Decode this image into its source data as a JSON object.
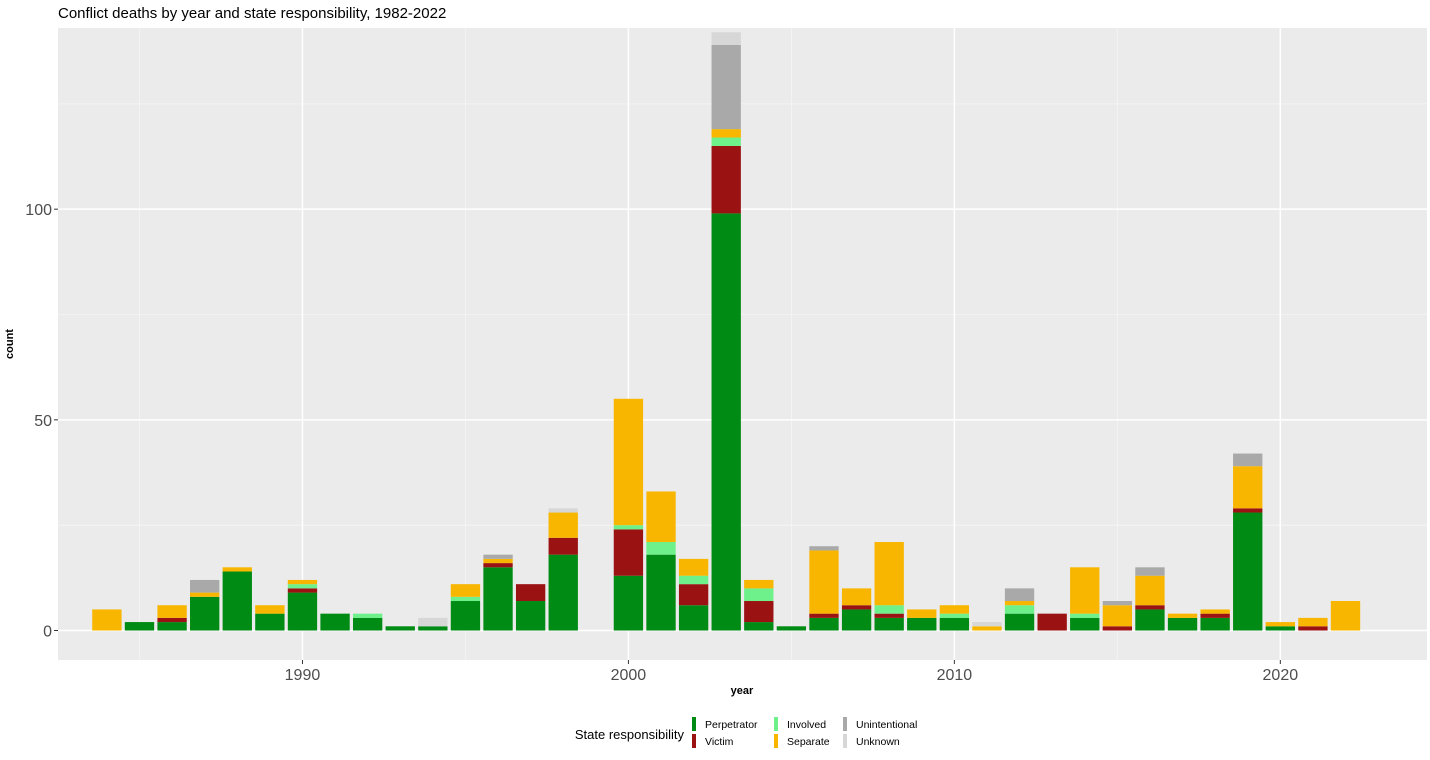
{
  "chart_data": {
    "type": "bar",
    "stacked": true,
    "title": "Conflict deaths by year and state responsibility, 1982-2022",
    "xlabel": "year",
    "ylabel": "count",
    "xlim": [
      1982.5,
      2024.5
    ],
    "ylim": [
      -7,
      143
    ],
    "x_ticks": [
      1990,
      2000,
      2010,
      2020
    ],
    "y_ticks": [
      0,
      50,
      100
    ],
    "grid": true,
    "legend_title": "State responsibility",
    "legend_position": "bottom",
    "years": [
      1984,
      1985,
      1986,
      1987,
      1988,
      1989,
      1990,
      1991,
      1992,
      1993,
      1994,
      1995,
      1996,
      1997,
      1998,
      2000,
      2001,
      2002,
      2003,
      2004,
      2005,
      2006,
      2007,
      2008,
      2009,
      2010,
      2011,
      2012,
      2013,
      2014,
      2015,
      2016,
      2017,
      2018,
      2019,
      2020,
      2021,
      2022
    ],
    "series": [
      {
        "name": "Perpetrator",
        "color": "#008b14",
        "values": [
          0,
          2,
          2,
          8,
          14,
          4,
          9,
          4,
          3,
          1,
          1,
          7,
          15,
          7,
          18,
          13,
          18,
          6,
          99,
          2,
          1,
          3,
          5,
          3,
          3,
          3,
          0,
          4,
          0,
          3,
          0,
          5,
          3,
          3,
          28,
          1,
          0,
          0
        ]
      },
      {
        "name": "Victim",
        "color": "#9b1213",
        "values": [
          0,
          0,
          1,
          0,
          0,
          0,
          1,
          0,
          0,
          0,
          0,
          0,
          1,
          4,
          4,
          11,
          0,
          5,
          16,
          5,
          0,
          1,
          1,
          1,
          0,
          0,
          0,
          0,
          4,
          0,
          1,
          1,
          0,
          1,
          1,
          0,
          1,
          0
        ]
      },
      {
        "name": "Involved",
        "color": "#6ef08a",
        "values": [
          0,
          0,
          0,
          0,
          0,
          0,
          1,
          0,
          1,
          0,
          0,
          1,
          0,
          0,
          0,
          1,
          3,
          2,
          2,
          3,
          0,
          0,
          0,
          2,
          0,
          1,
          0,
          2,
          0,
          1,
          0,
          0,
          0,
          0,
          0,
          0,
          0,
          0
        ]
      },
      {
        "name": "Separate",
        "color": "#f8b600",
        "values": [
          5,
          0,
          3,
          1,
          1,
          2,
          1,
          0,
          0,
          0,
          0,
          3,
          1,
          0,
          6,
          30,
          12,
          4,
          2,
          2,
          0,
          15,
          4,
          15,
          2,
          2,
          1,
          1,
          0,
          11,
          5,
          7,
          1,
          1,
          10,
          1,
          2,
          7
        ]
      },
      {
        "name": "Unintentional",
        "color": "#a9a9a9",
        "values": [
          0,
          0,
          0,
          3,
          0,
          0,
          0,
          0,
          0,
          0,
          0,
          0,
          1,
          0,
          0,
          0,
          0,
          0,
          20,
          0,
          0,
          1,
          0,
          0,
          0,
          0,
          0,
          3,
          0,
          0,
          1,
          2,
          0,
          0,
          3,
          0,
          0,
          0
        ]
      },
      {
        "name": "Unknown",
        "color": "#d7d7d7",
        "values": [
          0,
          0,
          0,
          0,
          0,
          0,
          0,
          0,
          0,
          0,
          2,
          0,
          0,
          0,
          1,
          0,
          0,
          0,
          3,
          0,
          0,
          0,
          0,
          0,
          0,
          0,
          1,
          0,
          0,
          0,
          0,
          0,
          0,
          0,
          0,
          0,
          0,
          0
        ]
      }
    ]
  }
}
